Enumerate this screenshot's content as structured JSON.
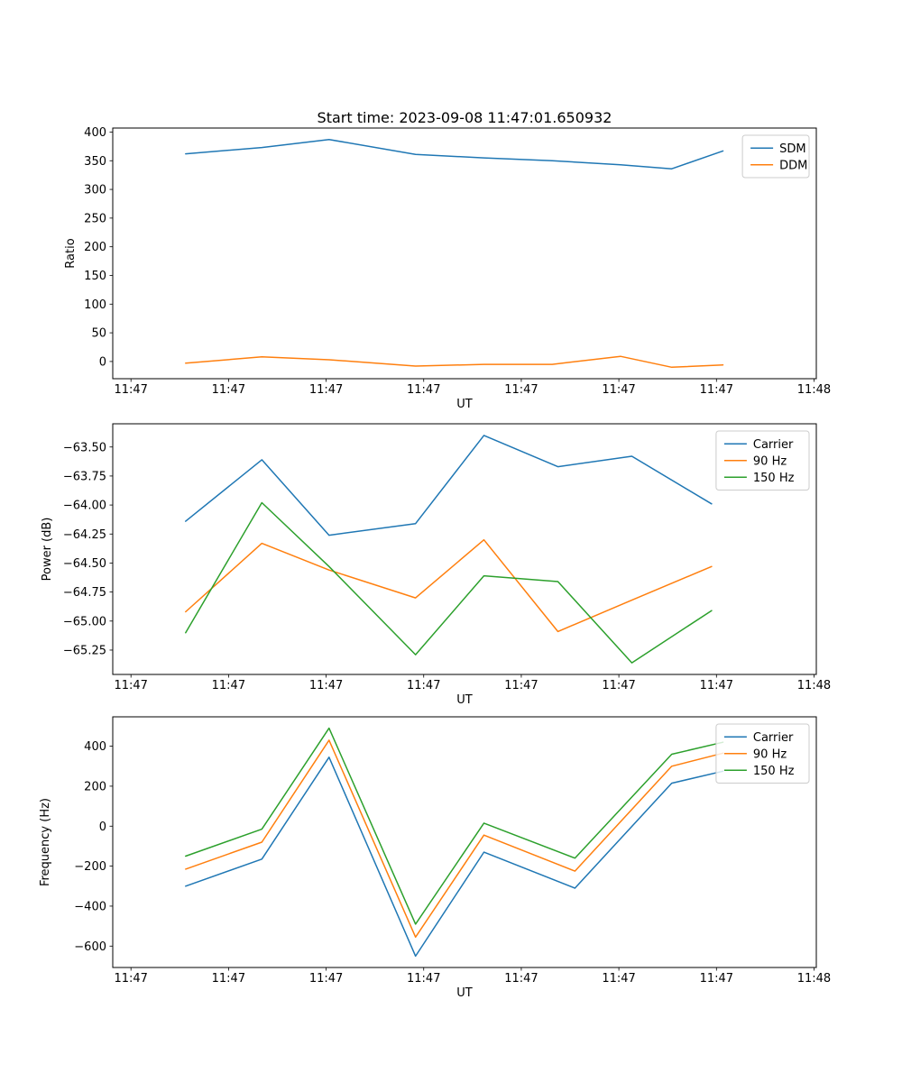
{
  "figure": {
    "title": "Start time: 2023-09-08 11:47:01.650932",
    "background": "#ffffff"
  },
  "colors": {
    "blue": "#1f77b4",
    "orange": "#ff7f0e",
    "green": "#2ca02c",
    "axis": "#000000",
    "legend_border": "#cccccc"
  },
  "chart_data": [
    {
      "type": "line",
      "title": "",
      "xlabel": "UT",
      "ylabel": "Ratio",
      "grid": false,
      "legend_position": "upper right",
      "xlim": [
        -1.6,
        60.2
      ],
      "x_tick_positions": [
        0,
        8.571,
        17.143,
        25.714,
        34.286,
        42.857,
        51.429,
        60
      ],
      "x_tick_labels": [
        "11:47",
        "11:47",
        "11:47",
        "11:47",
        "11:47",
        "11:47",
        "11:47",
        "11:48"
      ],
      "ylim": [
        -30,
        407
      ],
      "y_ticks": [
        0,
        50,
        100,
        150,
        200,
        250,
        300,
        350,
        400
      ],
      "y_tick_labels": [
        "0",
        "50",
        "100",
        "150",
        "200",
        "250",
        "300",
        "350",
        "400"
      ],
      "x": [
        4.8,
        11.5,
        17.4,
        25,
        31,
        37,
        43,
        47.5,
        52
      ],
      "series": [
        {
          "name": "SDM",
          "color": "#1f77b4",
          "values": [
            362,
            373,
            387,
            361,
            355,
            350,
            343,
            336,
            367
          ]
        },
        {
          "name": "DDM",
          "color": "#ff7f0e",
          "values": [
            -3,
            8,
            3,
            -8,
            -5,
            -5,
            9,
            -10,
            -6
          ]
        }
      ]
    },
    {
      "type": "line",
      "title": "",
      "xlabel": "UT",
      "ylabel": "Power (dB)",
      "grid": false,
      "legend_position": "upper right",
      "xlim": [
        -1.6,
        60.2
      ],
      "x_tick_positions": [
        0,
        8.571,
        17.143,
        25.714,
        34.286,
        42.857,
        51.429,
        60
      ],
      "x_tick_labels": [
        "11:47",
        "11:47",
        "11:47",
        "11:47",
        "11:47",
        "11:47",
        "11:47",
        "11:48"
      ],
      "ylim": [
        -65.46,
        -63.3
      ],
      "y_ticks": [
        -65.25,
        -65.0,
        -64.75,
        -64.5,
        -64.25,
        -64.0,
        -63.75,
        -63.5
      ],
      "y_tick_labels": [
        "−65.25",
        "−65.00",
        "−64.75",
        "−64.50",
        "−64.25",
        "−64.00",
        "−63.75",
        "−63.50"
      ],
      "x": [
        4.8,
        11.5,
        17.4,
        25,
        31,
        37.5,
        44,
        51
      ],
      "series": [
        {
          "name": "Carrier",
          "color": "#1f77b4",
          "values": [
            -64.14,
            -63.61,
            -64.26,
            -64.16,
            -63.4,
            -63.67,
            -63.58,
            -63.99
          ]
        },
        {
          "name": "90 Hz",
          "color": "#ff7f0e",
          "values": [
            -64.92,
            -64.33,
            -64.56,
            -64.8,
            -64.3,
            -65.09,
            -64.82,
            -64.53
          ]
        },
        {
          "name": "150 Hz",
          "color": "#2ca02c",
          "values": [
            -65.1,
            -63.98,
            -64.53,
            -65.29,
            -64.61,
            -64.66,
            -65.36,
            -64.91
          ]
        }
      ]
    },
    {
      "type": "line",
      "title": "",
      "xlabel": "UT",
      "ylabel": "Frequency (Hz)",
      "grid": false,
      "legend_position": "upper right",
      "xlim": [
        -1.6,
        60.2
      ],
      "x_tick_positions": [
        0,
        8.571,
        17.143,
        25.714,
        34.286,
        42.857,
        51.429,
        60
      ],
      "x_tick_labels": [
        "11:47",
        "11:47",
        "11:47",
        "11:47",
        "11:47",
        "11:47",
        "11:47",
        "11:48"
      ],
      "ylim": [
        -707,
        547
      ],
      "y_ticks": [
        -600,
        -400,
        -200,
        0,
        200,
        400
      ],
      "y_tick_labels": [
        "−600",
        "−400",
        "−200",
        "0",
        "200",
        "400"
      ],
      "x": [
        4.8,
        11.5,
        17.4,
        25,
        31,
        39,
        47.5,
        52
      ],
      "series": [
        {
          "name": "Carrier",
          "color": "#1f77b4",
          "values": [
            -300,
            -165,
            345,
            -650,
            -130,
            -310,
            215,
            275
          ]
        },
        {
          "name": "90 Hz",
          "color": "#ff7f0e",
          "values": [
            -215,
            -80,
            430,
            -555,
            -45,
            -225,
            300,
            365
          ]
        },
        {
          "name": "150 Hz",
          "color": "#2ca02c",
          "values": [
            -150,
            -15,
            490,
            -490,
            15,
            -160,
            360,
            420
          ]
        }
      ]
    }
  ]
}
